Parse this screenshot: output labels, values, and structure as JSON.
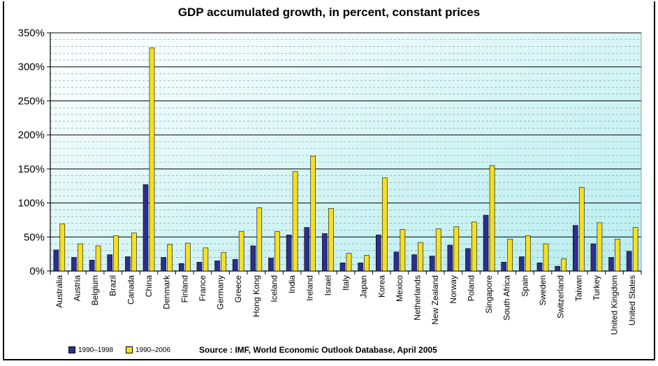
{
  "chart_data": {
    "type": "bar",
    "title": "GDP accumulated growth, in percent, constant prices",
    "source": "Source : IMF, World Economic Outlook Database, April 2005",
    "categories": [
      "Australia",
      "Austria",
      "Belgium",
      "Brazil",
      "Canada",
      "China",
      "Denmark",
      "Finland",
      "France",
      "Germany",
      "Greece",
      "Hong Kong",
      "Iceland",
      "India",
      "Ireland",
      "Israel",
      "Italy",
      "Japan",
      "Korea",
      "Mexico",
      "Netherlands",
      "New Zealand",
      "Norway",
      "Poland",
      "Singapore",
      "South Africa",
      "Spain",
      "Sweden",
      "Switzerland",
      "Taiwan",
      "Turkey",
      "United Kingdom",
      "United States"
    ],
    "series": [
      {
        "name": "1990–1998",
        "color": "#2e2e8c",
        "values": [
          31,
          20,
          16,
          24,
          21,
          127,
          20,
          11,
          13,
          15,
          17,
          37,
          19,
          53,
          64,
          55,
          12,
          12,
          53,
          28,
          24,
          22,
          38,
          33,
          82,
          13,
          21,
          12,
          7,
          67,
          40,
          20,
          29
        ]
      },
      {
        "name": "1990–2006",
        "color": "#f5e023",
        "values": [
          69,
          40,
          37,
          52,
          56,
          328,
          39,
          41,
          34,
          27,
          58,
          93,
          58,
          146,
          169,
          92,
          26,
          23,
          137,
          61,
          42,
          62,
          65,
          72,
          155,
          47,
          52,
          40,
          18,
          123,
          71,
          47,
          64
        ]
      }
    ],
    "ylim": [
      0,
      350
    ],
    "y_ticks": [
      0,
      50,
      100,
      150,
      200,
      250,
      300,
      350
    ],
    "y_tick_labels": [
      "0%",
      "50%",
      "100%",
      "150%",
      "200%",
      "250%",
      "300%",
      "350%"
    ],
    "grid": true,
    "legend_position": "bottom-left",
    "colors": {
      "plot_bg_top": "#b8eef0",
      "plot_bg_bottom": "#ffffff",
      "gridline": "#000000",
      "minor_gridline": "#7a8a8a"
    }
  }
}
